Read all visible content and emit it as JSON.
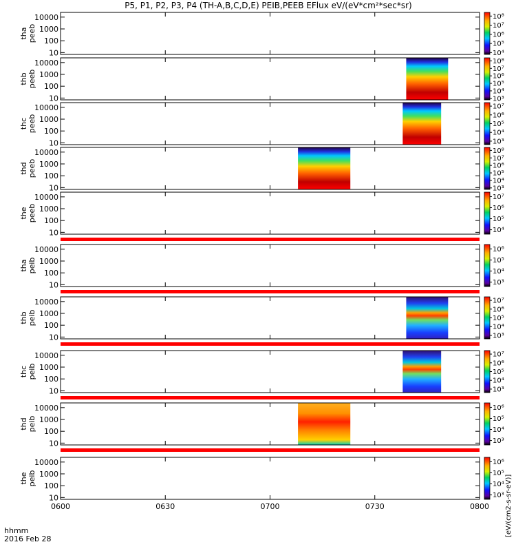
{
  "title": "P5, P1, P2, P3, P4 (TH-A,B,C,D,E) PEIB,PEEB EFlux eV/(eV*cm²*sec*sr)",
  "footer": {
    "time_label": "hhmm",
    "date_label": "2016 Feb 28"
  },
  "colorbar_unit_label": "[eV/(cm2-s-sr-eV)]",
  "colors": {
    "red_bar": "#ff0000",
    "frame": "#000000"
  },
  "chart_data": {
    "type": "heatmap",
    "x_axis": {
      "label": "hhmm",
      "ticks": [
        "0600",
        "0630",
        "0700",
        "0730",
        "0800"
      ],
      "range": [
        "06:00",
        "08:00"
      ]
    },
    "y_axis": {
      "scale": "log",
      "ticks": [
        "10",
        "100",
        "1000",
        "10000"
      ],
      "range": [
        7,
        25000
      ],
      "unit": "eV"
    },
    "panels": [
      {
        "label": "tha peeb",
        "probe": "THA",
        "instrument": "peeb",
        "data_interval": null,
        "cbar_ticks": [
          "10⁸",
          "10⁷",
          "10⁶",
          "10⁵",
          "10⁴"
        ],
        "cbar_range_exp": [
          3.8,
          8.4
        ],
        "red_bar_below": false
      },
      {
        "label": "thb peeb",
        "probe": "THB",
        "instrument": "peeb",
        "data_interval": [
          "07:39",
          "07:51"
        ],
        "cbar_ticks": [
          "10⁸",
          "10⁷",
          "10⁶",
          "10⁵",
          "10⁴",
          "10³"
        ],
        "cbar_range_exp": [
          2.8,
          8.4
        ],
        "red_bar_below": false
      },
      {
        "label": "thc peeb",
        "probe": "THC",
        "instrument": "peeb",
        "data_interval": [
          "07:38",
          "07:49"
        ],
        "cbar_ticks": [
          "10⁷",
          "10⁶",
          "10⁵",
          "10⁴",
          "10³"
        ],
        "cbar_range_exp": [
          2.6,
          7.4
        ],
        "red_bar_below": false
      },
      {
        "label": "thd peeb",
        "probe": "THD",
        "instrument": "peeb",
        "data_interval": [
          "07:08",
          "07:23"
        ],
        "cbar_ticks": [
          "10⁸",
          "10⁷",
          "10⁶",
          "10⁵",
          "10⁴",
          "10³"
        ],
        "cbar_range_exp": [
          2.8,
          8.4
        ],
        "red_bar_below": false
      },
      {
        "label": "the peeb",
        "probe": "THE",
        "instrument": "peeb",
        "data_interval": null,
        "cbar_ticks": [
          "10⁷",
          "10⁶",
          "10⁵",
          "10⁴"
        ],
        "cbar_range_exp": [
          3.6,
          7.4
        ],
        "red_bar_below": true
      },
      {
        "label": "tha peib",
        "probe": "THA",
        "instrument": "peib",
        "data_interval": null,
        "cbar_ticks": [
          "10⁶",
          "10⁵",
          "10⁴",
          "10³"
        ],
        "cbar_range_exp": [
          2.6,
          6.4
        ],
        "red_bar_below": true
      },
      {
        "label": "thb peib",
        "probe": "THB",
        "instrument": "peib",
        "data_interval": [
          "07:39",
          "07:51"
        ],
        "cbar_ticks": [
          "10⁷",
          "10⁶",
          "10⁵",
          "10⁴",
          "10³"
        ],
        "cbar_range_exp": [
          2.6,
          7.4
        ],
        "red_bar_below": true
      },
      {
        "label": "thc peib",
        "probe": "THC",
        "instrument": "peib",
        "data_interval": [
          "07:38",
          "07:49"
        ],
        "cbar_ticks": [
          "10⁷",
          "10⁶",
          "10⁵",
          "10⁴",
          "10³"
        ],
        "cbar_range_exp": [
          2.6,
          7.4
        ],
        "red_bar_below": true
      },
      {
        "label": "thd peib",
        "probe": "THD",
        "instrument": "peib",
        "data_interval": [
          "07:08",
          "07:23"
        ],
        "cbar_ticks": [
          "10⁶",
          "10⁵",
          "10⁴",
          "10³"
        ],
        "cbar_range_exp": [
          2.6,
          6.4
        ],
        "red_bar_below": true
      },
      {
        "label": "the peib",
        "probe": "THE",
        "instrument": "peib",
        "data_interval": null,
        "cbar_ticks": [
          "10⁶",
          "10⁵",
          "10⁴",
          "10³"
        ],
        "cbar_range_exp": [
          2.6,
          6.4
        ],
        "red_bar_below": false
      }
    ],
    "colormap": "rainbow (purple-blue-cyan-green-yellow-red), max at top",
    "grid": false,
    "legend": "colorbars at right of each panel"
  }
}
